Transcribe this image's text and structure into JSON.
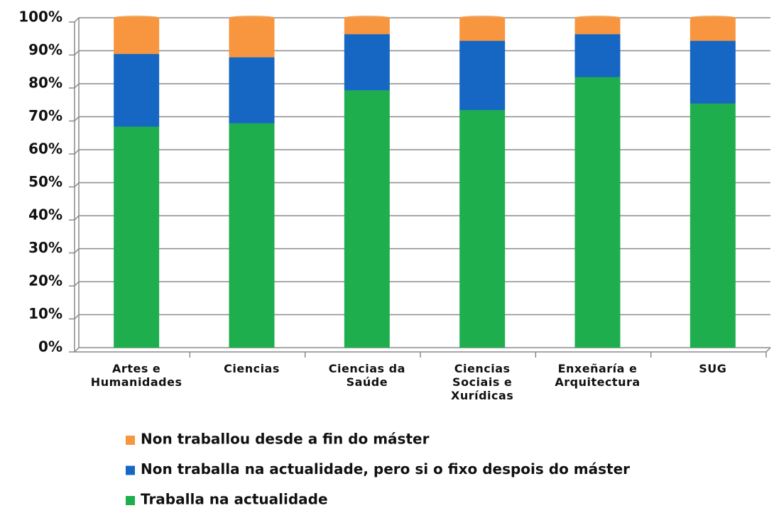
{
  "chart_data": {
    "type": "stacked_bar",
    "categories": [
      "Artes e Humanidades",
      "Ciencias",
      "Ciencias da Saúde",
      "Ciencias Sociais e Xurídicas",
      "Enxeñaría e Arquitectura",
      "SUG"
    ],
    "series": [
      {
        "name": "Traballa na actualidade",
        "color": "#1fae4e",
        "values": [
          67,
          68,
          78,
          72,
          82,
          74
        ]
      },
      {
        "name": "Non traballa na actualidade, pero si o fixo despois do máster",
        "color": "#1666c4",
        "values": [
          22,
          20,
          17,
          21,
          13,
          19
        ]
      },
      {
        "name": "Non traballou desde a fin do máster",
        "color": "#f7963f",
        "values": [
          11,
          12,
          5,
          7,
          5,
          7
        ]
      }
    ],
    "ylim": [
      0,
      100
    ],
    "yticks": [
      {
        "value": 0,
        "label": "0%"
      },
      {
        "value": 10,
        "label": "10%"
      },
      {
        "value": 20,
        "label": "20%"
      },
      {
        "value": 30,
        "label": "30%"
      },
      {
        "value": 40,
        "label": "40%"
      },
      {
        "value": 50,
        "label": "50%"
      },
      {
        "value": 60,
        "label": "60%"
      },
      {
        "value": 70,
        "label": "70%"
      },
      {
        "value": 80,
        "label": "80%"
      },
      {
        "value": 90,
        "label": "90%"
      },
      {
        "value": 100,
        "label": "100%"
      }
    ],
    "grid": true
  }
}
